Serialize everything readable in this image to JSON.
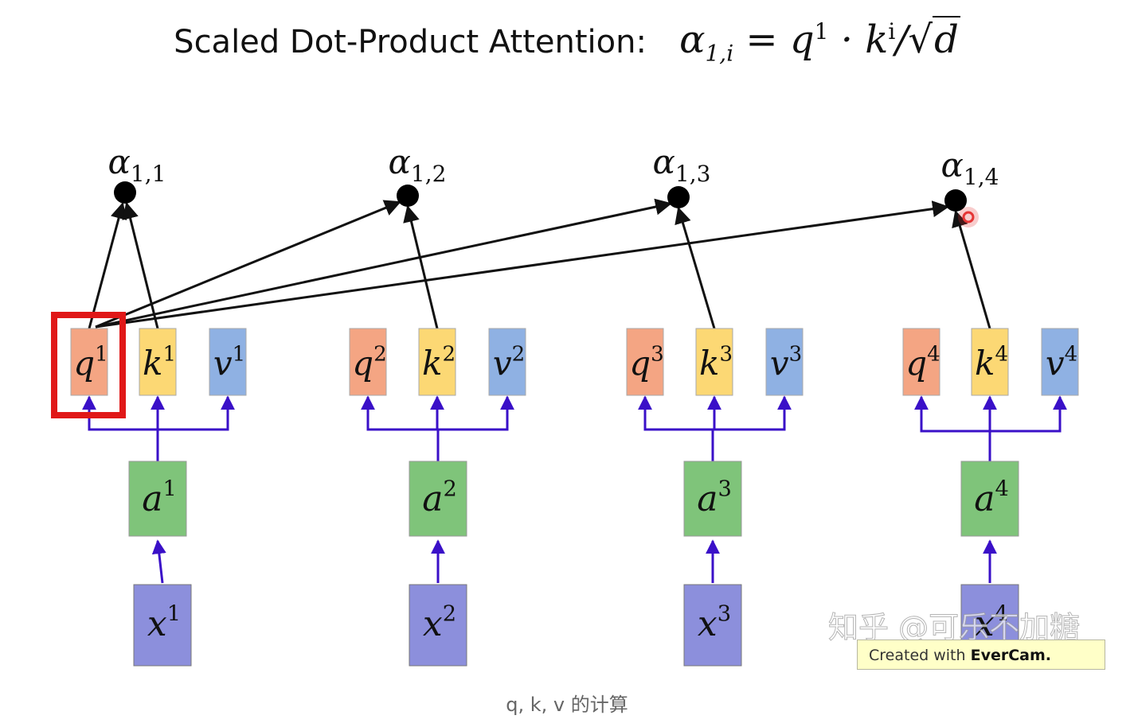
{
  "title": {
    "label": "Scaled Dot-Product Attention:",
    "lhs_base": "α",
    "lhs_sub": "1,i",
    "equals": "=",
    "q_base": "q",
    "q_sup": "1",
    "dot": "·",
    "k_base": "k",
    "k_sup": "i",
    "slash": "/",
    "sqrt_sym": "√",
    "sqrt_arg": "d"
  },
  "diagram": {
    "alphas": [
      {
        "base": "α",
        "sub": "1,1"
      },
      {
        "base": "α",
        "sub": "1,2"
      },
      {
        "base": "α",
        "sub": "1,3"
      },
      {
        "base": "α",
        "sub": "1,4"
      }
    ],
    "columns": [
      {
        "q": "1",
        "k": "1",
        "v": "1",
        "a": "1",
        "x": "1"
      },
      {
        "q": "2",
        "k": "2",
        "v": "2",
        "a": "2",
        "x": "2"
      },
      {
        "q": "3",
        "k": "3",
        "v": "3",
        "a": "3",
        "x": "3"
      },
      {
        "q": "4",
        "k": "4",
        "v": "4",
        "a": "4",
        "x": "4"
      }
    ],
    "symbols": {
      "q": "q",
      "k": "k",
      "v": "v",
      "a": "a",
      "x": "x"
    },
    "highlighted_box": "q1",
    "colors": {
      "q": "#f4a583",
      "k": "#fcd874",
      "v": "#8fb1e3",
      "a": "#7fc47a",
      "x": "#8c8fdc",
      "arrow_blue": "#3a10c8",
      "arrow_black": "#111111",
      "highlight": "#e01818",
      "cursor": "#e53535"
    }
  },
  "watermark": "知乎 @可乐不加糖",
  "evercam": {
    "prefix": "Created with ",
    "brand": "EverCam."
  },
  "caption": "q, k, v 的计算"
}
